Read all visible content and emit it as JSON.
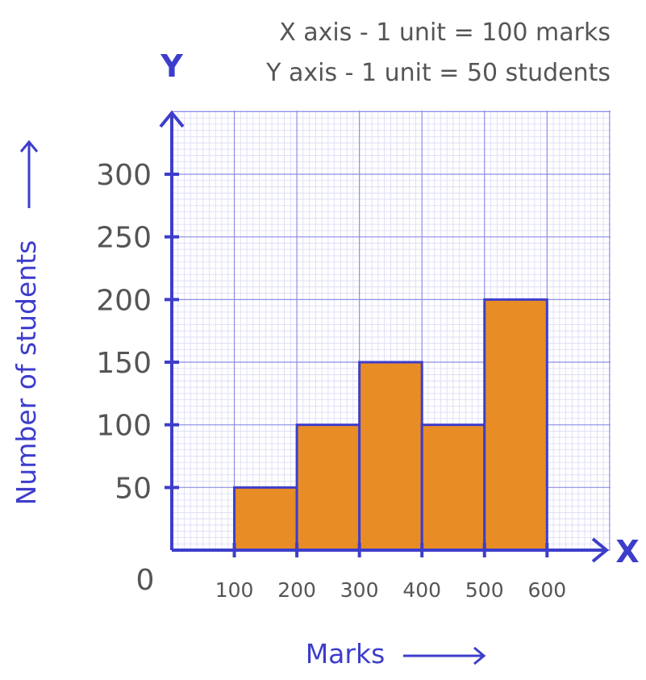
{
  "scale_notes": {
    "x": "X axis - 1 unit = 100 marks",
    "y": "Y axis - 1 unit = 50 students"
  },
  "colors": {
    "axis": "#3d3dcc",
    "bar_fill": "#e88d25",
    "bar_stroke": "#3d3dcc",
    "grid_major": "#8d8de6",
    "grid_minor": "#d9d9f5",
    "tick_text": "#555555"
  },
  "chart_data": {
    "type": "histogram",
    "xlabel": "Marks",
    "ylabel": "Number of students",
    "x_axis_letter": "X",
    "y_axis_letter": "Y",
    "origin_label": "0",
    "x_ticks": [
      "100",
      "200",
      "300",
      "400",
      "500",
      "600"
    ],
    "y_ticks": [
      "50",
      "100",
      "150",
      "200",
      "250",
      "300"
    ],
    "bins": [
      {
        "from": 100,
        "to": 200,
        "value": 50
      },
      {
        "from": 200,
        "to": 300,
        "value": 100
      },
      {
        "from": 300,
        "to": 400,
        "value": 150
      },
      {
        "from": 400,
        "to": 500,
        "value": 100
      },
      {
        "from": 500,
        "to": 600,
        "value": 200
      }
    ],
    "xlim": [
      0,
      700
    ],
    "ylim": [
      0,
      350
    ],
    "grid": true
  }
}
